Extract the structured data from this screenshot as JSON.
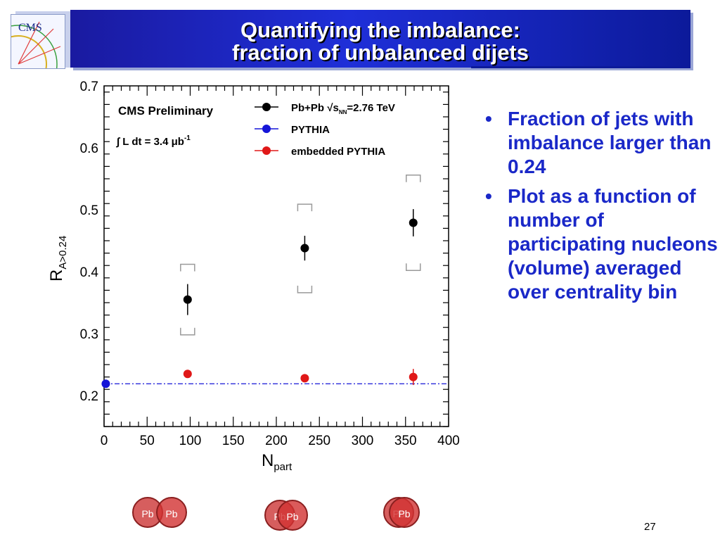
{
  "slide": {
    "title_line1": "Quantifying the imbalance:",
    "title_line2": "fraction of unbalanced dijets",
    "logo_text": "CMS",
    "page_number": "27",
    "bullets": [
      "Fraction of jets with imbalance larger than 0.24",
      "Plot as a function of number of participating nucleons (volume) averaged over centrality bin"
    ],
    "bullet_glyph": "•",
    "collisions": [
      {
        "left": "Pb",
        "right": "Pb"
      },
      {
        "left": "Pb",
        "right": "Pb"
      },
      {
        "left": "Pb",
        "right": "Pb"
      }
    ]
  },
  "chart_data": {
    "type": "scatter",
    "xlim": [
      0,
      400
    ],
    "ylim": [
      0.15,
      0.7
    ],
    "x_ticks": [
      0,
      50,
      100,
      150,
      200,
      250,
      300,
      350,
      400
    ],
    "y_ticks": [
      0.2,
      0.3,
      0.4,
      0.5,
      0.6,
      0.7
    ],
    "x_tick_labels": [
      "0",
      "50",
      "100",
      "150",
      "200",
      "250",
      "300",
      "350",
      "400"
    ],
    "y_tick_labels": [
      "0.2",
      "0.3",
      "0.4",
      "0.5",
      "0.6",
      "0.7"
    ],
    "xlabel_main": "N",
    "xlabel_sub": "part",
    "ylabel_main": "R",
    "ylabel_sub": "A>0.24",
    "annotation_title": "CMS Preliminary",
    "annotation_lumi": "∫ L dt = 3.4 μb",
    "annotation_lumi_sup": "-1",
    "legend_position": "top-right",
    "series": [
      {
        "name": "Pb+Pb √s",
        "name_sub": "NN",
        "name_suffix": "=2.76 TeV",
        "color": "#000000",
        "x": [
          97,
          233,
          359
        ],
        "y": [
          0.355,
          0.438,
          0.479
        ],
        "err": [
          0.025,
          0.02,
          0.022
        ],
        "syst_low": [
          0.298,
          0.366,
          0.402
        ],
        "syst_high": [
          0.412,
          0.509,
          0.556
        ]
      },
      {
        "name": "PYTHIA",
        "color": "#1515d8",
        "x": [
          2
        ],
        "y": [
          0.219
        ],
        "line_y": 0.219
      },
      {
        "name": "embedded PYTHIA",
        "color": "#e01818",
        "x": [
          97,
          233,
          359
        ],
        "y": [
          0.235,
          0.228,
          0.23
        ],
        "err": [
          0.004,
          0.004,
          0.013
        ]
      }
    ]
  }
}
